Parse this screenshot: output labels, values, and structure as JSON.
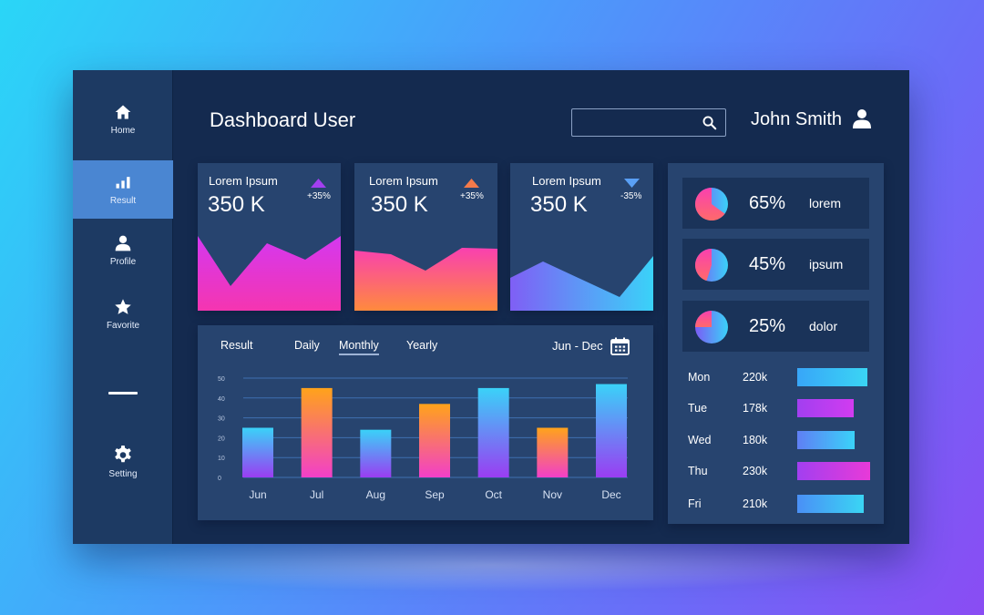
{
  "sidebar": {
    "items": [
      {
        "label": "Home",
        "icon": "home-icon"
      },
      {
        "label": "Result",
        "icon": "bar-chart-icon",
        "active": true
      },
      {
        "label": "Profile",
        "icon": "user-icon"
      },
      {
        "label": "Favorite",
        "icon": "star-icon"
      },
      {
        "label": "Setting",
        "icon": "gear-icon"
      }
    ]
  },
  "header": {
    "title": "Dashboard User",
    "search_value": "",
    "user_name": "John Smith"
  },
  "stats": [
    {
      "label": "Lorem Ipsum",
      "value": "350 K",
      "change": "+35%",
      "direction": "up",
      "arrow_color": "#a23ff0",
      "gradient": [
        "#d438f0",
        "#f535b0"
      ]
    },
    {
      "label": "Lorem Ipsum",
      "value": "350 K",
      "change": "+35%",
      "direction": "up",
      "arrow_color": "#f47a4a",
      "gradient": [
        "#f940b0",
        "#ff8a3d"
      ]
    },
    {
      "label": "Lorem Ipsum",
      "value": "350 K",
      "change": "-35%",
      "direction": "down",
      "arrow_color": "#5aa0f5",
      "gradient": [
        "#7f5ff5",
        "#3ad2f8"
      ]
    }
  ],
  "result_chart": {
    "title": "Result",
    "tabs": [
      "Daily",
      "Monthly",
      "Yearly"
    ],
    "active_tab": "Monthly",
    "range": "Jun - Dec"
  },
  "chart_data": {
    "type": "bar",
    "title": "Result",
    "categories": [
      "Jun",
      "Jul",
      "Aug",
      "Sep",
      "Oct",
      "Nov",
      "Dec"
    ],
    "values": [
      25,
      45,
      24,
      37,
      45,
      25,
      47
    ],
    "ylim": [
      0,
      50
    ],
    "yticks": [
      0,
      10,
      20,
      30,
      40,
      50
    ],
    "grid": true,
    "colors": [
      "blue",
      "orange",
      "blue",
      "orange",
      "blue",
      "orange",
      "blue"
    ]
  },
  "pies": [
    {
      "percent": 65,
      "label": "65%",
      "name": "lorem"
    },
    {
      "percent": 45,
      "label": "45%",
      "name": "ipsum"
    },
    {
      "percent": 25,
      "label": "25%",
      "name": "dolor"
    }
  ],
  "weekly": [
    {
      "day": "Mon",
      "value": "220k",
      "amount": 220,
      "gradient": [
        "#38a6f8",
        "#3ad5f4"
      ]
    },
    {
      "day": "Tue",
      "value": "178k",
      "amount": 178,
      "gradient": [
        "#a23ff0",
        "#d13cf0"
      ]
    },
    {
      "day": "Wed",
      "value": "180k",
      "amount": 180,
      "gradient": [
        "#5f7ff5",
        "#3ad2f8"
      ]
    },
    {
      "day": "Thu",
      "value": "230k",
      "amount": 230,
      "gradient": [
        "#a23ff0",
        "#e83ad8"
      ]
    },
    {
      "day": "Fri",
      "value": "210k",
      "amount": 210,
      "gradient": [
        "#4a90f6",
        "#3ad5f4"
      ]
    }
  ]
}
